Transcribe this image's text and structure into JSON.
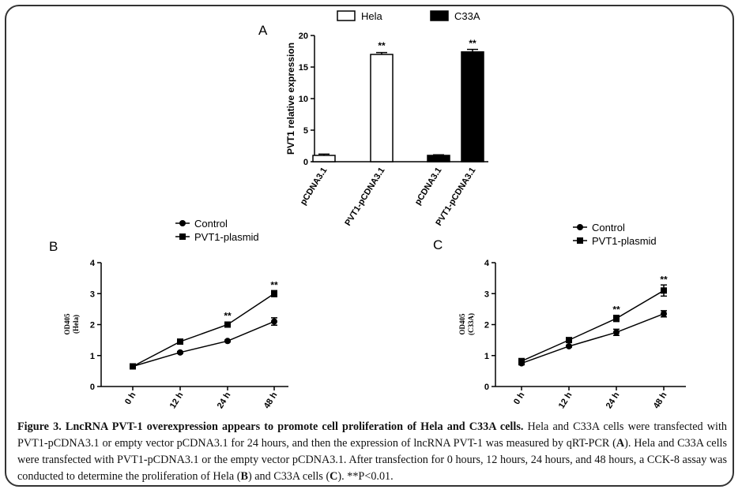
{
  "chart_data": [
    {
      "type": "bar",
      "label": "A",
      "ylabel": "PVT1 relative expression",
      "categories": [
        "pCDNA3.1",
        "PVT1-pCDNA3.1",
        "pCDNA3.1",
        "PVT1-pCDNA3.1"
      ],
      "series": [
        {
          "name": "Hela",
          "color": "#ffffff",
          "values": [
            1.0,
            17.0,
            null,
            null
          ],
          "errors": [
            0.2,
            0.3,
            null,
            null
          ],
          "annotations": [
            null,
            "**",
            null,
            null
          ]
        },
        {
          "name": "C33A",
          "color": "#000000",
          "values": [
            null,
            null,
            1.0,
            17.4
          ],
          "errors": [
            null,
            null,
            0.1,
            0.4
          ],
          "annotations": [
            null,
            null,
            null,
            "**"
          ]
        }
      ],
      "ylim": [
        0,
        20
      ],
      "yticks": [
        0,
        5,
        10,
        15,
        20
      ]
    },
    {
      "type": "line",
      "label": "B",
      "ylabel": [
        "OD405",
        "(Hela)"
      ],
      "categories": [
        "0 h",
        "12 h",
        "24 h",
        "48 h"
      ],
      "series": [
        {
          "name": "Control",
          "color": "#000000",
          "marker": "circle",
          "values": [
            0.65,
            1.1,
            1.47,
            2.1
          ],
          "errors": [
            0.03,
            0.03,
            0.03,
            0.12
          ],
          "annotations": [
            null,
            null,
            null,
            null
          ]
        },
        {
          "name": "PVT1-plasmid",
          "color": "#000000",
          "marker": "square",
          "values": [
            0.65,
            1.45,
            2.0,
            3.0
          ],
          "errors": [
            0.03,
            0.03,
            0.08,
            0.1
          ],
          "annotations": [
            null,
            null,
            "**",
            "**"
          ]
        }
      ],
      "ylim": [
        0,
        4
      ],
      "yticks": [
        0,
        1,
        2,
        3,
        4
      ]
    },
    {
      "type": "line",
      "label": "C",
      "ylabel": [
        "OD405",
        "(C33A)"
      ],
      "categories": [
        "0 h",
        "12 h",
        "24 h",
        "48 h"
      ],
      "series": [
        {
          "name": "Control",
          "color": "#000000",
          "marker": "circle",
          "values": [
            0.75,
            1.3,
            1.75,
            2.35
          ],
          "errors": [
            0.05,
            0.03,
            0.1,
            0.1
          ],
          "annotations": [
            null,
            null,
            null,
            null
          ]
        },
        {
          "name": "PVT1-plasmid",
          "color": "#000000",
          "marker": "square",
          "values": [
            0.82,
            1.5,
            2.2,
            3.1
          ],
          "errors": [
            0.08,
            0.03,
            0.1,
            0.18
          ],
          "annotations": [
            null,
            null,
            "**",
            "**"
          ]
        }
      ],
      "ylim": [
        0,
        4
      ],
      "yticks": [
        0,
        1,
        2,
        3,
        4
      ]
    }
  ],
  "caption": [
    {
      "text": "Figure 3. LncRNA PVT-1 overexpression appears to promote cell proliferation of Hela and C33A cells.",
      "bold": true
    },
    {
      "text": " Hela and C33A cells were transfected with PVT1-pCDNA3.1 or empty vector pCDNA3.1 for 24 hours, and then the expression of lncRNA PVT-1 was measured by qRT-PCR (",
      "bold": false
    },
    {
      "text": "A",
      "bold": true
    },
    {
      "text": "). Hela and C33A cells were transfected with PVT1-pCDNA3.1 or the empty vector pCDNA3.1. After transfection for 0 hours, 12 hours, 24 hours, and 48 hours, a CCK-8 assay was conducted to determine the proliferation of Hela (",
      "bold": false
    },
    {
      "text": "B",
      "bold": true
    },
    {
      "text": ") and C33A cells (",
      "bold": false
    },
    {
      "text": "C",
      "bold": true
    },
    {
      "text": "). **P<0.01.",
      "bold": false
    }
  ]
}
